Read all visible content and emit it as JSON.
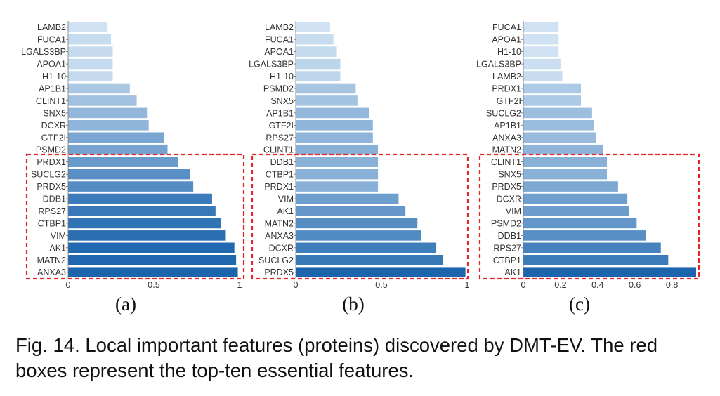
{
  "figure": {
    "caption": "Fig. 14. Local important features (proteins) discovered by DMT-EV. The red boxes represent the top-ten essential features.",
    "highlight_note": "top-ten essential features",
    "highlight_color": "#e8242b",
    "bar_color_low": "#cfe1f2",
    "bar_color_high": "#1c65ad"
  },
  "chart_data": [
    {
      "type": "bar",
      "orientation": "horizontal",
      "panel_label": "(a)",
      "xlim": [
        0,
        1
      ],
      "xticks": [
        0,
        0.5,
        1
      ],
      "xtick_labels": [
        "0",
        "0.5",
        "1"
      ],
      "categories": [
        "LAMB2",
        "FUCA1",
        "LGALS3BP",
        "APOA1",
        "H1-10",
        "AP1B1",
        "CLINT1",
        "SNX5",
        "DCXR",
        "GTF2I",
        "PSMD2",
        "PRDX1",
        "SUCLG2",
        "PRDX5",
        "DDB1",
        "RPS27",
        "CTBP1",
        "VIM",
        "AK1",
        "MATN2",
        "ANXA3"
      ],
      "values": [
        0.23,
        0.25,
        0.26,
        0.26,
        0.26,
        0.36,
        0.4,
        0.46,
        0.47,
        0.56,
        0.58,
        0.64,
        0.71,
        0.73,
        0.84,
        0.86,
        0.89,
        0.92,
        0.97,
        0.98,
        0.99
      ]
    },
    {
      "type": "bar",
      "orientation": "horizontal",
      "panel_label": "(b)",
      "xlim": [
        0,
        1
      ],
      "xticks": [
        0,
        0.5,
        1
      ],
      "xtick_labels": [
        "0",
        "0.5",
        "1"
      ],
      "categories": [
        "LAMB2",
        "FUCA1",
        "APOA1",
        "LGALS3BP",
        "H1-10",
        "PSMD2",
        "SNX5",
        "AP1B1",
        "GTF2I",
        "RPS27",
        "CLINT1",
        "DDB1",
        "CTBP1",
        "PRDX1",
        "VIM",
        "AK1",
        "MATN2",
        "ANXA3",
        "DCXR",
        "SUCLG2",
        "PRDX5"
      ],
      "values": [
        0.2,
        0.22,
        0.24,
        0.26,
        0.26,
        0.35,
        0.36,
        0.43,
        0.45,
        0.45,
        0.48,
        0.48,
        0.48,
        0.48,
        0.6,
        0.64,
        0.71,
        0.73,
        0.82,
        0.86,
        0.99
      ]
    },
    {
      "type": "bar",
      "orientation": "horizontal",
      "panel_label": "(c)",
      "xlim": [
        0,
        0.93
      ],
      "xticks": [
        0,
        0.2,
        0.4,
        0.6,
        0.8
      ],
      "xtick_labels": [
        "0",
        "0.2",
        "0.4",
        "0.6",
        "0.8"
      ],
      "categories": [
        "FUCA1",
        "APOA1",
        "H1-10",
        "LGALS3BP",
        "LAMB2",
        "PRDX1",
        "GTF2I",
        "SUCLG2",
        "AP1B1",
        "ANXA3",
        "MATN2",
        "CLINT1",
        "SNX5",
        "PRDX5",
        "DCXR",
        "VIM",
        "PSMD2",
        "DDB1",
        "RPS27",
        "CTBP1",
        "AK1"
      ],
      "values": [
        0.19,
        0.19,
        0.19,
        0.2,
        0.21,
        0.31,
        0.31,
        0.37,
        0.38,
        0.39,
        0.43,
        0.45,
        0.45,
        0.51,
        0.56,
        0.57,
        0.61,
        0.66,
        0.74,
        0.78,
        0.93
      ]
    }
  ]
}
